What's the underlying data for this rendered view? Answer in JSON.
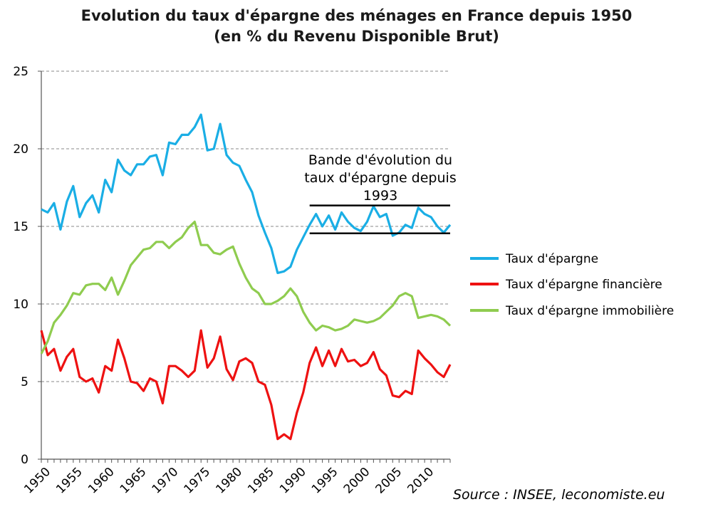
{
  "chart_data": {
    "type": "line",
    "title": "Evolution du taux d'épargne des ménages en France depuis 1950",
    "subtitle": "(en % du Revenu Disponible Brut)",
    "source": "Source : INSEE, leconomiste.eu",
    "xlim": [
      1950,
      2014
    ],
    "ylim": [
      0,
      25
    ],
    "yticks": [
      0,
      5,
      10,
      15,
      20,
      25
    ],
    "xticks": [
      1950,
      1955,
      1960,
      1965,
      1970,
      1975,
      1980,
      1985,
      1990,
      1995,
      2000,
      2005,
      2010
    ],
    "grid": "horizontal dashed",
    "legend_position": "right",
    "x": [
      1950,
      1951,
      1952,
      1953,
      1954,
      1955,
      1956,
      1957,
      1958,
      1959,
      1960,
      1961,
      1962,
      1963,
      1964,
      1965,
      1966,
      1967,
      1968,
      1969,
      1970,
      1971,
      1972,
      1973,
      1974,
      1975,
      1976,
      1977,
      1978,
      1979,
      1980,
      1981,
      1982,
      1983,
      1984,
      1985,
      1986,
      1987,
      1988,
      1989,
      1990,
      1991,
      1992,
      1993,
      1994,
      1995,
      1996,
      1997,
      1998,
      1999,
      2000,
      2001,
      2002,
      2003,
      2004,
      2005,
      2006,
      2007,
      2008,
      2009,
      2010,
      2011,
      2012,
      2013,
      2014
    ],
    "series": [
      {
        "name": "Taux d'épargne",
        "color": "#1aaee5",
        "values": [
          16.1,
          15.9,
          16.5,
          14.8,
          16.6,
          17.6,
          15.6,
          16.5,
          17.0,
          15.9,
          18.0,
          17.2,
          19.3,
          18.6,
          18.3,
          19.0,
          19.0,
          19.5,
          19.6,
          18.3,
          20.4,
          20.3,
          20.9,
          20.9,
          21.4,
          22.2,
          19.9,
          20.0,
          21.6,
          19.6,
          19.1,
          18.9,
          18.0,
          17.2,
          15.7,
          14.6,
          13.6,
          12.0,
          12.1,
          12.4,
          13.5,
          14.3,
          15.1,
          15.8,
          15.0,
          15.7,
          14.8,
          15.9,
          15.3,
          14.9,
          14.7,
          15.3,
          16.3,
          15.6,
          15.8,
          14.4,
          14.6,
          15.1,
          14.9,
          16.2,
          15.8,
          15.6,
          15.0,
          14.6,
          15.1
        ]
      },
      {
        "name": "Taux d'épargne financière",
        "color": "#ee1111",
        "values": [
          8.3,
          6.7,
          7.1,
          5.7,
          6.6,
          7.1,
          5.3,
          5.0,
          5.2,
          4.3,
          6.0,
          5.7,
          7.7,
          6.5,
          5.0,
          4.9,
          4.4,
          5.2,
          5.0,
          3.6,
          6.0,
          6.0,
          5.7,
          5.3,
          5.7,
          8.3,
          5.9,
          6.5,
          7.9,
          5.8,
          5.1,
          6.3,
          6.5,
          6.2,
          5.0,
          4.8,
          3.5,
          1.3,
          1.6,
          1.3,
          3.0,
          4.3,
          6.2,
          7.2,
          6.0,
          7.0,
          6.0,
          7.1,
          6.3,
          6.4,
          6.0,
          6.2,
          6.9,
          5.8,
          5.4,
          4.1,
          4.0,
          4.4,
          4.2,
          7.0,
          6.5,
          6.1,
          5.6,
          5.3,
          6.1
        ]
      },
      {
        "name": "Taux d'épargne immobilière",
        "color": "#8fcc4f",
        "values": [
          6.8,
          7.6,
          8.8,
          9.3,
          9.9,
          10.7,
          10.6,
          11.2,
          11.3,
          11.3,
          10.9,
          11.7,
          10.6,
          11.5,
          12.5,
          13.0,
          13.5,
          13.6,
          14.0,
          14.0,
          13.6,
          14.0,
          14.3,
          14.9,
          15.3,
          13.8,
          13.8,
          13.3,
          13.2,
          13.5,
          13.7,
          12.6,
          11.7,
          11.0,
          10.7,
          10.0,
          10.0,
          10.2,
          10.5,
          11.0,
          10.5,
          9.5,
          8.8,
          8.3,
          8.6,
          8.5,
          8.3,
          8.4,
          8.6,
          9.0,
          8.9,
          8.8,
          8.9,
          9.1,
          9.5,
          9.9,
          10.5,
          10.7,
          10.5,
          9.1,
          9.2,
          9.3,
          9.2,
          9.0,
          8.6
        ]
      }
    ],
    "annotation": {
      "lines": [
        "Bande d'évolution du",
        "taux d'épargne depuis",
        "1993"
      ],
      "band_upper": 16.35,
      "band_lower": 14.55,
      "x_from": 1992,
      "x_to": 2014
    }
  }
}
